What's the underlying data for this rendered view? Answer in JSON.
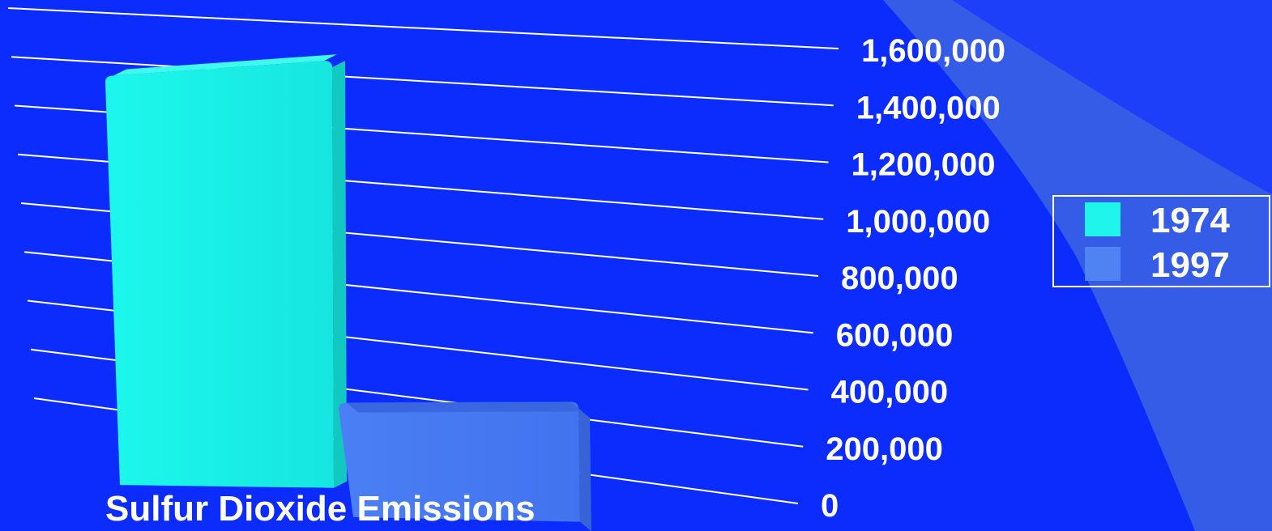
{
  "chart_data": {
    "type": "bar",
    "title": "",
    "xlabel": "Sulfur Dioxide Emissions",
    "ylabel": "",
    "categories": [
      "Sulfur Dioxide Emissions"
    ],
    "series": [
      {
        "name": "1974",
        "values": [
          1620000
        ],
        "color": "#1ff5ea"
      },
      {
        "name": "1997",
        "values": [
          440000
        ],
        "color": "#4f83f4"
      }
    ],
    "ylim": [
      0,
      1600000
    ],
    "yticks": [
      0,
      200000,
      400000,
      600000,
      800000,
      1000000,
      1200000,
      1400000,
      1600000
    ],
    "ytick_labels": [
      "0",
      "200,000",
      "400,000",
      "600,000",
      "800,000",
      "1,000,000",
      "1,200,000",
      "1,400,000",
      "1,600,000"
    ],
    "grid": true,
    "legend_position": "right",
    "three_d": true
  },
  "colors": {
    "background": "#0b2cfd",
    "grid_line": "#ffffff",
    "text": "#ffffff",
    "decor_band": "#3a62e4"
  }
}
